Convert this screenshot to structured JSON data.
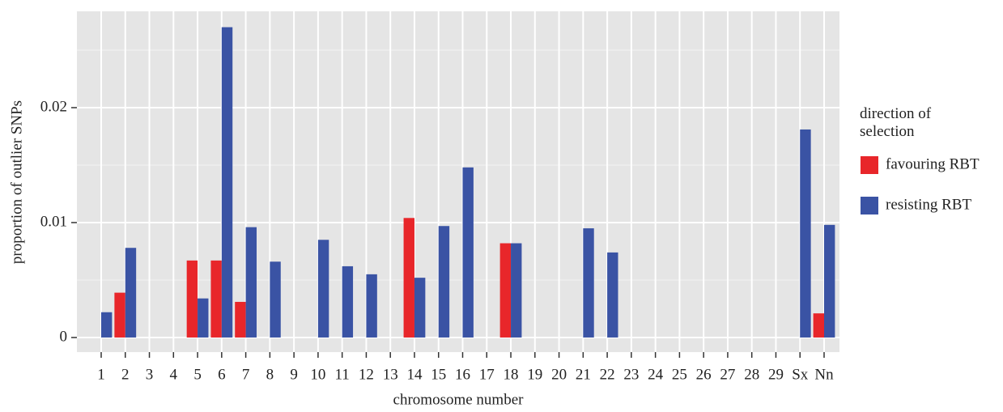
{
  "chart_data": {
    "type": "bar",
    "x_label": "chromosome number",
    "y_label": "proportion of outlier SNPs",
    "legend_title": "direction of selection",
    "categories": [
      "1",
      "2",
      "3",
      "4",
      "5",
      "6",
      "7",
      "8",
      "9",
      "10",
      "11",
      "12",
      "13",
      "14",
      "15",
      "16",
      "17",
      "18",
      "19",
      "20",
      "21",
      "22",
      "23",
      "24",
      "25",
      "26",
      "27",
      "28",
      "29",
      "Sx",
      "Nn"
    ],
    "series": [
      {
        "name": "favouring RBT",
        "color": "#e8262a",
        "values": [
          0,
          0.0039,
          0,
          0,
          0.0067,
          0.0067,
          0.0031,
          0,
          0,
          0,
          0,
          0,
          0,
          0.0104,
          0,
          0,
          0,
          0.0082,
          0,
          0,
          0,
          0,
          0,
          0,
          0,
          0,
          0,
          0,
          0,
          0,
          0.0021
        ]
      },
      {
        "name": "resisting RBT",
        "color": "#3a53a4",
        "values": [
          0.0022,
          0.0078,
          0,
          0,
          0.0034,
          0.027,
          0.0096,
          0.0066,
          0,
          0.0085,
          0.0062,
          0.0055,
          0,
          0.0052,
          0.0097,
          0.0148,
          0,
          0.0082,
          0,
          0,
          0.0095,
          0.0074,
          0,
          0,
          0,
          0,
          0,
          0,
          0,
          0.0181,
          0.0098
        ]
      }
    ],
    "ylim": [
      -0.00127,
      0.02838
    ],
    "yticks": [
      0,
      0.01,
      0.02
    ],
    "grid": true
  }
}
